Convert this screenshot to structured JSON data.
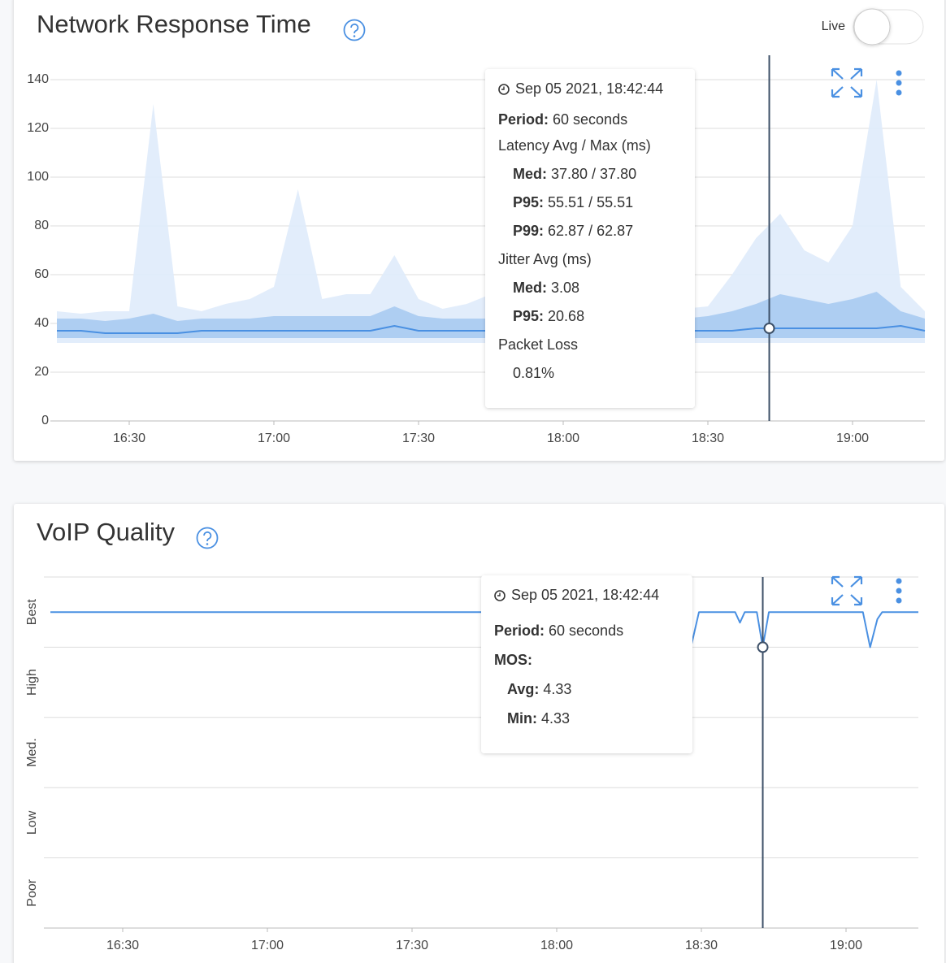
{
  "chart_data": [
    {
      "type": "line",
      "title": "Network Response Time",
      "live_toggle": "Live",
      "x": [
        975,
        980,
        985,
        990,
        995,
        1000,
        1005,
        1010,
        1015,
        1020,
        1025,
        1030,
        1035,
        1040,
        1045,
        1050,
        1055,
        1060,
        1065,
        1070,
        1075,
        1080,
        1085,
        1090,
        1095,
        1100,
        1105,
        1110,
        1115,
        1120,
        1125,
        1130,
        1135,
        1140,
        1145,
        1150,
        1155
      ],
      "xlim": [
        975,
        1155
      ],
      "xticks": [
        {
          "value": 990,
          "label": "16:30"
        },
        {
          "value": 1020,
          "label": "17:00"
        },
        {
          "value": 1050,
          "label": "17:30"
        },
        {
          "value": 1080,
          "label": "18:00"
        },
        {
          "value": 1110,
          "label": "18:30"
        },
        {
          "value": 1140,
          "label": "19:00"
        }
      ],
      "ylim": [
        0,
        150
      ],
      "yticks": [
        0,
        20,
        40,
        60,
        80,
        100,
        120,
        140
      ],
      "grid": true,
      "series": [
        {
          "color": "#dfebfb",
          "values": [
            45,
            44,
            45,
            45,
            130,
            47,
            45,
            48,
            50,
            55,
            95,
            50,
            52,
            52,
            68,
            50,
            46,
            48,
            52,
            46,
            45,
            45,
            46,
            45,
            45,
            45,
            46,
            47,
            60,
            75,
            85,
            70,
            65,
            80,
            140,
            55,
            45
          ],
          "low": [
            32,
            32,
            32,
            32,
            32,
            32,
            32,
            32,
            32,
            32,
            32,
            32,
            32,
            32,
            32,
            32,
            32,
            32,
            32,
            32,
            32,
            32,
            32,
            32,
            32,
            32,
            32,
            32,
            32,
            32,
            32,
            32,
            32,
            32,
            32,
            32,
            32
          ]
        },
        {
          "color": "#a9caf1",
          "values": [
            42,
            42,
            41,
            42,
            44,
            41,
            42,
            42,
            42,
            43,
            43,
            43,
            43,
            43,
            47,
            43,
            42,
            42,
            42,
            42,
            42,
            42,
            42,
            42,
            42,
            42,
            42,
            43,
            45,
            48,
            52,
            50,
            48,
            50,
            53,
            45,
            42
          ],
          "low": [
            34,
            34,
            34,
            34,
            34,
            34,
            34,
            34,
            34,
            34,
            34,
            34,
            34,
            34,
            34,
            34,
            34,
            34,
            34,
            34,
            34,
            34,
            34,
            34,
            34,
            34,
            34,
            34,
            34,
            34,
            34,
            34,
            34,
            34,
            34,
            34,
            34
          ]
        },
        {
          "color": "#4a90e2",
          "values": [
            37,
            37,
            36,
            36,
            36,
            36,
            37,
            37,
            37,
            37,
            37,
            37,
            37,
            37,
            39,
            37,
            37,
            37,
            37,
            37,
            37,
            37,
            37,
            37,
            37,
            37,
            37,
            37,
            37,
            38,
            38,
            38,
            38,
            38,
            38,
            39,
            37
          ]
        }
      ],
      "cursor_x": 1122.73,
      "tooltip": {
        "time": "Sep 05 2021, 18:42:44",
        "period": {
          "label": "Period:",
          "value": "60 seconds"
        },
        "groups": [
          {
            "title": "Latency Avg / Max (ms)",
            "items": [
              {
                "label": "Med:",
                "value": "37.80 / 37.80"
              },
              {
                "label": "P95:",
                "value": "55.51 / 55.51"
              },
              {
                "label": "P99:",
                "value": "62.87 / 62.87"
              }
            ]
          },
          {
            "title": "Jitter Avg (ms)",
            "items": [
              {
                "label": "Med:",
                "value": "3.08"
              },
              {
                "label": "P95:",
                "value": "20.68"
              }
            ]
          },
          {
            "title": "Packet Loss",
            "items": [
              {
                "value": "0.81%"
              }
            ]
          }
        ]
      }
    },
    {
      "type": "line",
      "title": "VoIP Quality",
      "x": [
        975,
        1106,
        1108,
        1109.5,
        1117,
        1118,
        1119,
        1121.5,
        1122.73,
        1124,
        1143.5,
        1145,
        1146.5,
        1147.5,
        1155
      ],
      "xlim": [
        975,
        1155
      ],
      "xticks": [
        {
          "value": 990,
          "label": "16:30"
        },
        {
          "value": 1020,
          "label": "17:00"
        },
        {
          "value": 1050,
          "label": "17:30"
        },
        {
          "value": 1080,
          "label": "18:00"
        },
        {
          "value": 1110,
          "label": "18:30"
        },
        {
          "value": 1140,
          "label": "19:00"
        }
      ],
      "ylim": [
        0,
        5
      ],
      "yticks": [
        0,
        1,
        2,
        3,
        4,
        5
      ],
      "y_categories": [
        "Poor",
        "Low",
        "Med.",
        "High",
        "Best"
      ],
      "grid": true,
      "series": [
        {
          "color": "#4a90e2",
          "values": [
            4.5,
            4.5,
            4.05,
            4.5,
            4.5,
            4.35,
            4.5,
            4.5,
            4.0,
            4.5,
            4.5,
            4.0,
            4.4,
            4.5,
            4.5
          ]
        }
      ],
      "cursor_x": 1122.73,
      "tooltip": {
        "time": "Sep 05 2021, 18:42:44",
        "period": {
          "label": "Period:",
          "value": "60 seconds"
        },
        "groups": [
          {
            "title": "MOS:",
            "bold": true,
            "items": [
              {
                "label": "Avg:",
                "value": "4.33"
              },
              {
                "label": "Min:",
                "value": "4.33"
              }
            ]
          }
        ]
      }
    }
  ]
}
